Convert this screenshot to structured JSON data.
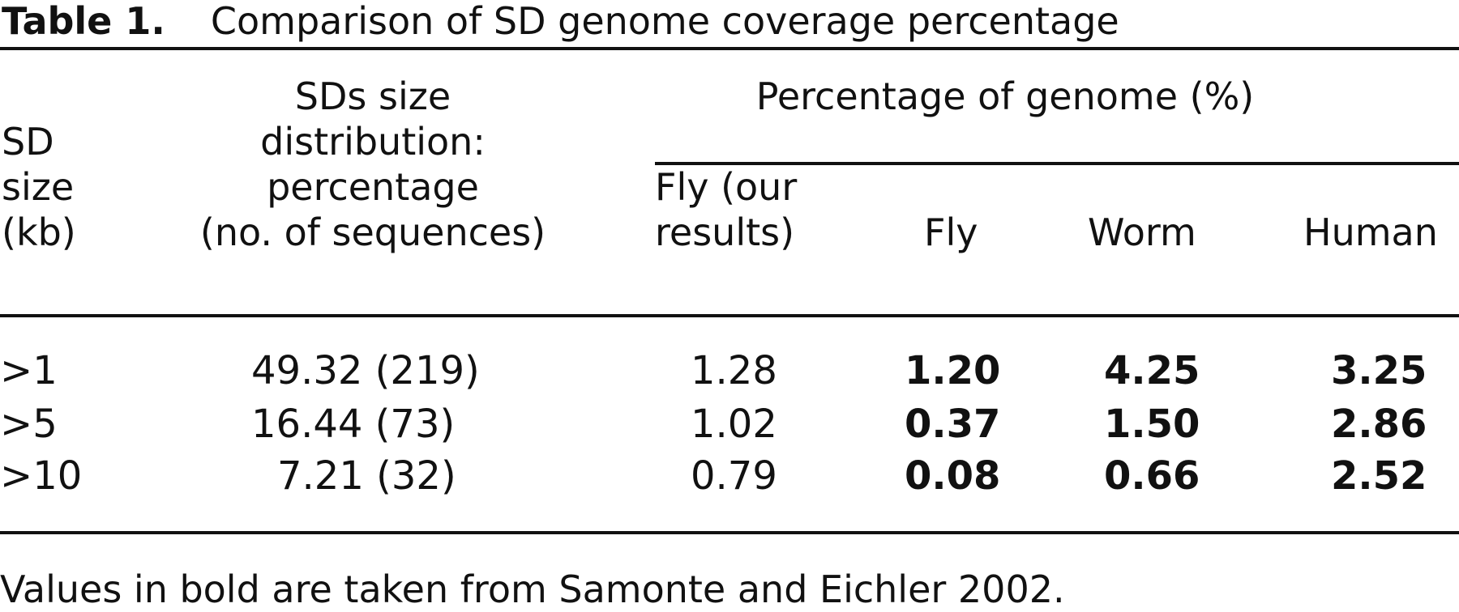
{
  "table": {
    "label": "Table 1.",
    "title": "Comparison of SD genome coverage percentage",
    "headers": {
      "sd_size": [
        "SD",
        "size",
        "(kb)"
      ],
      "distribution": [
        "SDs size",
        "distribution:",
        "percentage",
        "(no. of sequences)"
      ],
      "group": "Percentage of genome (%)",
      "fly_ours": [
        "Fly (our",
        "results)"
      ],
      "fly": "Fly",
      "worm": "Worm",
      "human": "Human"
    },
    "rows": [
      {
        "size": ">1",
        "distribution": "49.32 (219)",
        "fly_ours": "1.28",
        "fly": "1.20",
        "worm": "4.25",
        "human": "3.25"
      },
      {
        "size": ">5",
        "distribution": "16.44 (73)",
        "fly_ours": "1.02",
        "fly": "0.37",
        "worm": "1.50",
        "human": "2.86"
      },
      {
        "size": ">10",
        "distribution": "7.21 (32)",
        "fly_ours": "0.79",
        "fly": "0.08",
        "worm": "0.66",
        "human": "2.52"
      }
    ],
    "footnote": "Values in bold are taken from Samonte and Eichler 2002."
  }
}
